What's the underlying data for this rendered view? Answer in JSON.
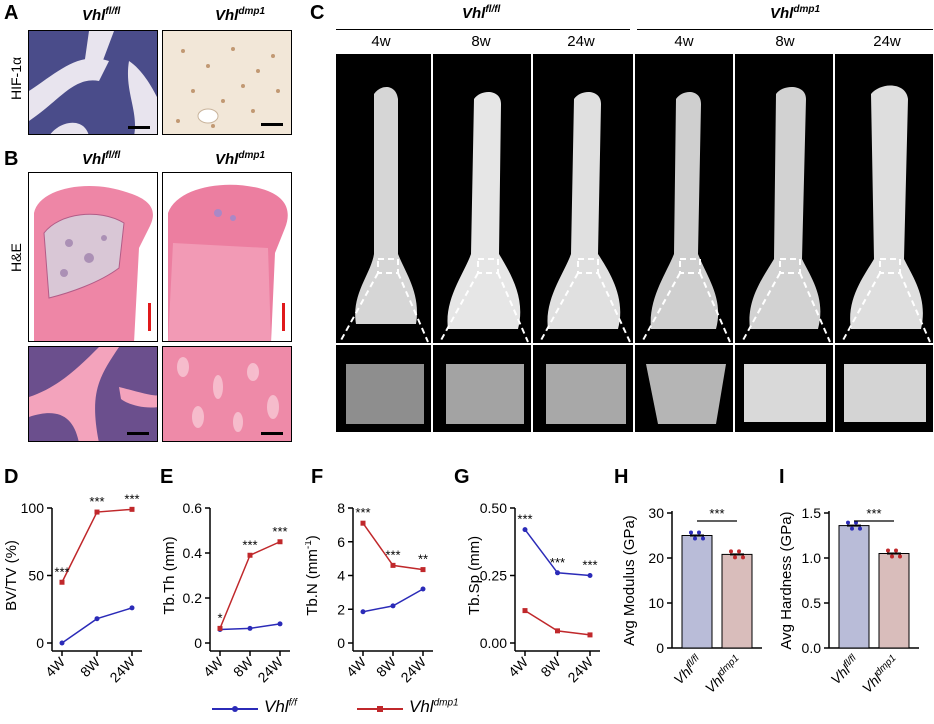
{
  "panels": {
    "A": {
      "letter": "A",
      "row_label": "HIF-1α",
      "left_geno": "Vhl",
      "left_sup": "fl/fl",
      "right_geno": "Vhl",
      "right_sup": "dmp1"
    },
    "B": {
      "letter": "B",
      "row_label": "H&E",
      "left_geno": "Vhl",
      "left_sup": "fl/fl",
      "right_geno": "Vhl",
      "right_sup": "dmp1"
    },
    "C": {
      "letter": "C",
      "left_geno": "Vhl",
      "left_sup": "fl/fl",
      "right_geno": "Vhl",
      "right_sup": "dmp1",
      "timepoints": [
        "4w",
        "8w",
        "24w",
        "4w",
        "8w",
        "24w"
      ]
    },
    "D": {
      "letter": "D"
    },
    "E": {
      "letter": "E"
    },
    "F": {
      "letter": "F"
    },
    "G": {
      "letter": "G"
    },
    "H": {
      "letter": "H"
    },
    "I": {
      "letter": "I"
    }
  },
  "legend": {
    "series1": "Vhl",
    "series1_sup": "f/f",
    "series2": "Vhl",
    "series2_sup": "dmp1"
  },
  "colors": {
    "control": "#2b2bb8",
    "mutant": "#c0282b",
    "bar_control": "#b9bcd8",
    "bar_mutant": "#d9bdbb",
    "he_pink": "#e86b8f"
  },
  "chart_data": [
    {
      "type": "line",
      "panel": "D",
      "ylabel": "BV/TV (%)",
      "categories": [
        "4W",
        "8W",
        "24W"
      ],
      "ylim": [
        0,
        100
      ],
      "yticks": [
        0,
        50,
        100
      ],
      "series": [
        {
          "name": "Vhl f/f",
          "values": [
            0,
            18,
            26
          ]
        },
        {
          "name": "Vhl dmp1",
          "values": [
            45,
            97,
            99
          ]
        }
      ],
      "annotations": [
        "***",
        "***",
        "***"
      ]
    },
    {
      "type": "line",
      "panel": "E",
      "ylabel": "Tb.Th (mm)",
      "categories": [
        "4W",
        "8W",
        "24W"
      ],
      "ylim": [
        0,
        0.6
      ],
      "yticks": [
        0.0,
        0.2,
        0.4,
        0.6
      ],
      "series": [
        {
          "name": "Vhl f/f",
          "values": [
            0.06,
            0.065,
            0.085
          ]
        },
        {
          "name": "Vhl dmp1",
          "values": [
            0.065,
            0.39,
            0.45
          ]
        }
      ],
      "annotations": [
        "*",
        "***",
        "***"
      ]
    },
    {
      "type": "line",
      "panel": "F",
      "ylabel": "Tb.N (mm",
      "ylabel_sup": "-1",
      "ylabel_end": ")",
      "categories": [
        "4W",
        "8W",
        "24W"
      ],
      "ylim": [
        0,
        8
      ],
      "yticks": [
        0,
        2,
        4,
        6,
        8
      ],
      "series": [
        {
          "name": "Vhl f/f",
          "values": [
            1.85,
            2.2,
            3.2
          ]
        },
        {
          "name": "Vhl dmp1",
          "values": [
            7.1,
            4.6,
            4.35
          ]
        }
      ],
      "annotations": [
        "***",
        "***",
        "**"
      ]
    },
    {
      "type": "line",
      "panel": "G",
      "ylabel": "Tb.Sp (mm)",
      "categories": [
        "4W",
        "8W",
        "24W"
      ],
      "ylim": [
        0,
        0.5
      ],
      "yticks": [
        0.0,
        0.25,
        0.5
      ],
      "ytick_labels": [
        "0.00",
        "0.25",
        "0.50"
      ],
      "series": [
        {
          "name": "Vhl f/f",
          "values": [
            0.42,
            0.26,
            0.25
          ]
        },
        {
          "name": "Vhl dmp1",
          "values": [
            0.12,
            0.045,
            0.03
          ]
        }
      ],
      "annotations": [
        "***",
        "***",
        "***"
      ]
    },
    {
      "type": "bar",
      "panel": "H",
      "ylabel": "Avg Modulus (GPa)",
      "categories": [
        "Vhl fl/fl",
        "Vhl dmp1"
      ],
      "values": [
        25.0,
        20.8
      ],
      "ylim": [
        0,
        30
      ],
      "yticks": [
        0,
        10,
        20,
        30
      ],
      "annotation": "***"
    },
    {
      "type": "bar",
      "panel": "I",
      "ylabel": "Avg Hardness (GPa)",
      "categories": [
        "Vhl fl/fl",
        "Vhl dmp1"
      ],
      "values": [
        1.36,
        1.05
      ],
      "ylim": [
        0,
        1.5
      ],
      "yticks": [
        0.0,
        0.5,
        1.0,
        1.5
      ],
      "ytick_labels": [
        "0.0",
        "0.5",
        "1.0",
        "1.5"
      ],
      "annotation": "***"
    }
  ]
}
